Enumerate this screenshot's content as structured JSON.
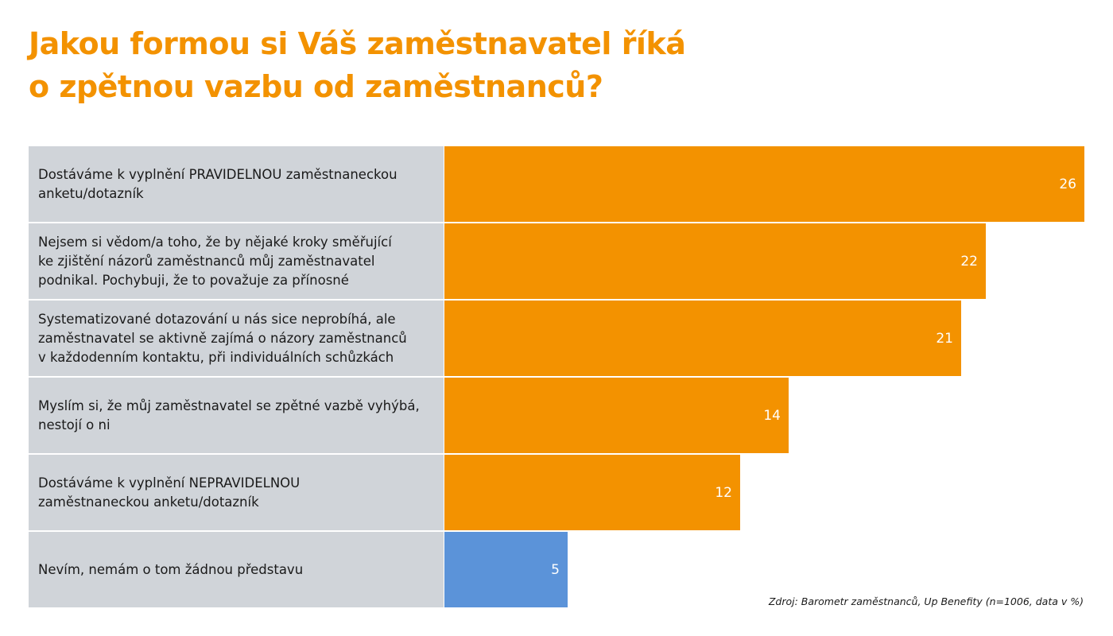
{
  "title": {
    "line1": "Jakou formou si Váš zaměstnavatel říká",
    "line2": "o zpětnou vazbu od zaměstnanců?"
  },
  "source": "Zdroj: Barometr zaměstnanců, Up Benefity (n=1006, data v %)",
  "colors": {
    "accent": "#f39200",
    "highlight": "#5b93d9",
    "label_bg": "#d0d4d9"
  },
  "chart_data": {
    "type": "bar",
    "orientation": "horizontal",
    "unit": "%",
    "categories": [
      [
        "Dostáváme k vyplnění PRAVIDELNOU zaměstnaneckou",
        "anketu/dotazník"
      ],
      [
        "Nejsem si vědom/a toho, že by nějaké kroky směřující",
        "ke zjištění názorů zaměstnanců můj zaměstnavatel",
        "podnikal. Pochybuji, že to považuje za přínosné"
      ],
      [
        "Systematizované dotazování u nás sice neprobíhá, ale",
        "zaměstnavatel se aktivně zajímá o názory zaměstnanců",
        "v každodenním kontaktu, při individuálních schůzkách"
      ],
      [
        "Myslím si, že můj zaměstnavatel se zpětné vazbě vyhýbá,",
        "nestojí o ni"
      ],
      [
        "Dostáváme k vyplnění NEPRAVIDELNOU",
        "zaměstnaneckou anketu/dotazník"
      ],
      [
        "Nevím, nemám o tom žádnou představu"
      ]
    ],
    "values": [
      26,
      22,
      21,
      14,
      12,
      5
    ],
    "bar_colors": [
      "#f39200",
      "#f39200",
      "#f39200",
      "#f39200",
      "#f39200",
      "#5b93d9"
    ],
    "xlim": [
      0,
      26
    ]
  }
}
